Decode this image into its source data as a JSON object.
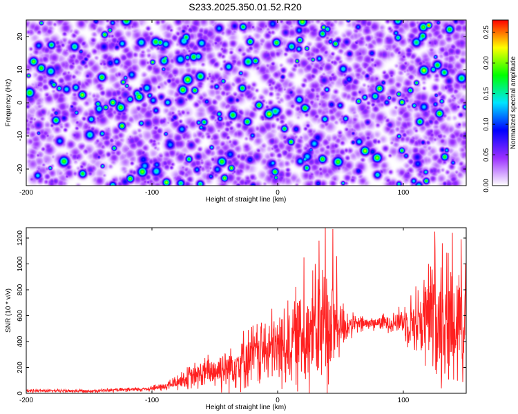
{
  "title": "S233.2025.350.01.52.R20",
  "chart_data": [
    {
      "type": "heatmap",
      "title": "",
      "xlabel": "Height of straight line (km)",
      "ylabel": "Frequency (Hz)",
      "xlim": [
        -200,
        150
      ],
      "ylim": [
        -25,
        25
      ],
      "xticks": [
        -200,
        -100,
        0,
        100
      ],
      "yticks": [
        -20,
        -10,
        0,
        10,
        20
      ],
      "colorbar": {
        "label": "Normalized spectral amplitude",
        "range": [
          0,
          0.27
        ],
        "ticks": [
          0.0,
          0.05,
          0.1,
          0.15,
          0.2,
          0.25
        ],
        "tick_labels": [
          "0.00",
          "0.05",
          "0.10",
          "0.15",
          "0.20",
          "0.25"
        ],
        "colors": [
          "#ffffff",
          "#9b30ff",
          "#0000ff",
          "#00e5ff",
          "#00ff00",
          "#ffff00",
          "#ff0000"
        ]
      },
      "noise_model": {
        "typical_amplitude": 0.04,
        "peak_amplitude": 0.22,
        "hotspots": [
          [
            120,
            23.5,
            0.26
          ],
          [
            118,
            -23.5,
            0.2
          ]
        ]
      }
    },
    {
      "type": "line",
      "title": "",
      "xlabel": "Height of straight line (km)",
      "ylabel": "SNR (10 * v/v)",
      "xlim": [
        -200,
        150
      ],
      "ylim": [
        0,
        1280
      ],
      "xticks": [
        -200,
        -100,
        0,
        100
      ],
      "yticks": [
        0,
        200,
        400,
        600,
        800,
        1000,
        1200
      ],
      "color": "#ff2020",
      "envelope": [
        {
          "x": -200,
          "base": 20,
          "amp": 15
        },
        {
          "x": -150,
          "base": 18,
          "amp": 15
        },
        {
          "x": -110,
          "base": 30,
          "amp": 20
        },
        {
          "x": -90,
          "base": 50,
          "amp": 40
        },
        {
          "x": -80,
          "base": 90,
          "amp": 80
        },
        {
          "x": -60,
          "base": 150,
          "amp": 150
        },
        {
          "x": -40,
          "base": 200,
          "amp": 220
        },
        {
          "x": -20,
          "base": 300,
          "amp": 300
        },
        {
          "x": 0,
          "base": 350,
          "amp": 380
        },
        {
          "x": 20,
          "base": 450,
          "amp": 500
        },
        {
          "x": 40,
          "base": 500,
          "amp": 650
        },
        {
          "x": 50,
          "base": 520,
          "amp": 300
        },
        {
          "x": 60,
          "base": 530,
          "amp": 100
        },
        {
          "x": 80,
          "base": 545,
          "amp": 60
        },
        {
          "x": 100,
          "base": 560,
          "amp": 150
        },
        {
          "x": 110,
          "base": 550,
          "amp": 350
        },
        {
          "x": 125,
          "base": 600,
          "amp": 620
        },
        {
          "x": 140,
          "base": 580,
          "amp": 620
        },
        {
          "x": 150,
          "base": 600,
          "amp": 620
        }
      ],
      "spikes": [
        {
          "x": 21,
          "y": 1050
        },
        {
          "x": 33,
          "y": 1180
        },
        {
          "x": 38,
          "y": 1280
        },
        {
          "x": 44,
          "y": 1270
        },
        {
          "x": 47,
          "y": 1060
        },
        {
          "x": 125,
          "y": 1250
        },
        {
          "x": 131,
          "y": 1160
        },
        {
          "x": 139,
          "y": 1240
        },
        {
          "x": 146,
          "y": 1190
        },
        {
          "x": 37,
          "y": 900
        },
        {
          "x": 28,
          "y": 950
        },
        {
          "x": 120,
          "y": 1000
        }
      ]
    }
  ]
}
